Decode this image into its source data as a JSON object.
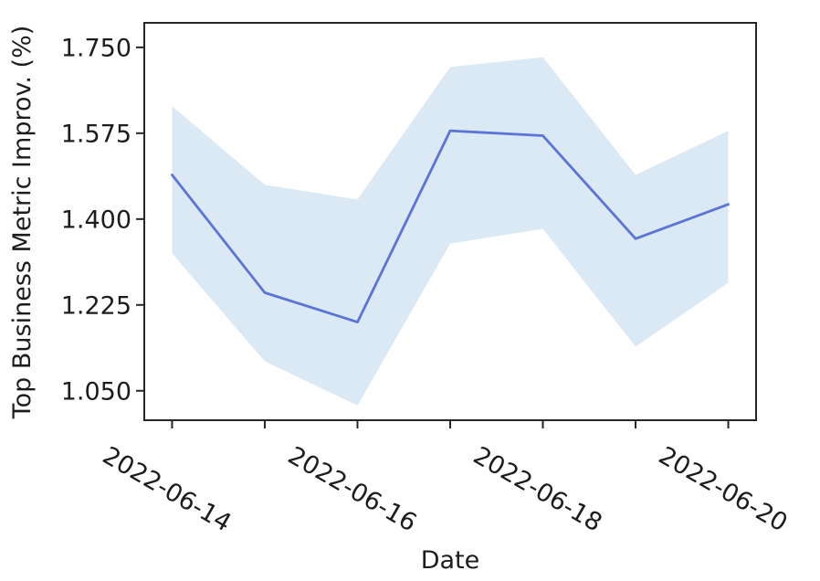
{
  "chart_data": {
    "type": "line",
    "title": "",
    "xlabel": "Date",
    "ylabel": "Top Business Metric Improv. (%)",
    "x": [
      "2022-06-14",
      "2022-06-15",
      "2022-06-16",
      "2022-06-17",
      "2022-06-18",
      "2022-06-19",
      "2022-06-20"
    ],
    "series": [
      {
        "name": "Top Business Metric Improv. (%)",
        "values": [
          1.49,
          1.25,
          1.19,
          1.58,
          1.57,
          1.36,
          1.43
        ]
      }
    ],
    "band": {
      "upper": [
        1.63,
        1.47,
        1.44,
        1.71,
        1.73,
        1.49,
        1.58
      ],
      "lower": [
        1.33,
        1.11,
        1.02,
        1.35,
        1.38,
        1.14,
        1.27
      ]
    },
    "yticks": [
      1.05,
      1.225,
      1.4,
      1.575,
      1.75
    ],
    "ytick_labels": [
      "1.050",
      "1.225",
      "1.400",
      "1.575",
      "1.750"
    ],
    "xtick_label_indices": [
      0,
      2,
      4,
      6
    ],
    "xtick_labels": [
      "2022-06-14",
      "2022-06-16",
      "2022-06-18",
      "2022-06-20"
    ],
    "xtick_rotation_deg": 30,
    "ylim": [
      0.99,
      1.8
    ],
    "xlim_index": [
      -0.3,
      6.3
    ],
    "grid": false,
    "legend": null,
    "colors": {
      "line": "#5b74d6",
      "band": "#dbe9f5",
      "axis": "#262626",
      "text": "#1c1c1c",
      "background": "#ffffff"
    }
  }
}
